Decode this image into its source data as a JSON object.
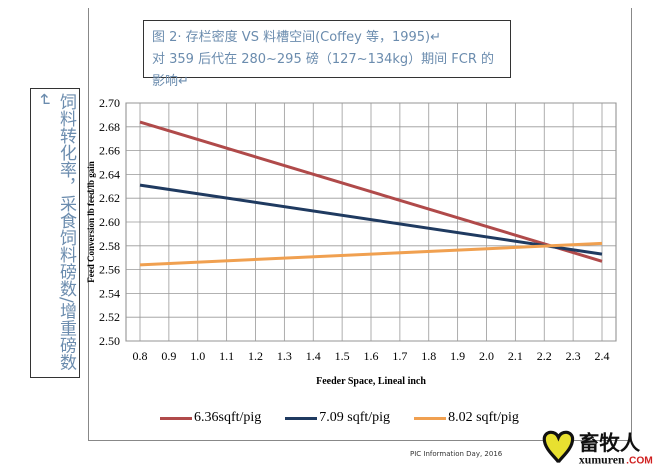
{
  "title_box": {
    "line1": "图 2· 存栏密度 VS 料槽空间(Coffey 等，1995)↵",
    "line2": "对 359 后代在 280~295 磅（127~134kg）期间 FCR 的影响↵"
  },
  "side_label": "饲料转化率，采食饲料磅数/增重磅数↵",
  "credit": "PIC Information Day, 2016",
  "logo": {
    "cn": "畜牧人",
    "en": "xumuren",
    "com": ".COM"
  },
  "chart_data": {
    "type": "line",
    "xlabel": "Feeder Space, Lineal inch",
    "ylabel": "Feed Conversion lb feed/lb gain",
    "xlim": [
      0.8,
      2.4
    ],
    "ylim": [
      2.5,
      2.7
    ],
    "x_ticks": [
      "0.8",
      "0.9",
      "1.0",
      "1.1",
      "1.2",
      "1.3",
      "1.4",
      "1.5",
      "1.6",
      "1.7",
      "1.8",
      "1.9",
      "2.0",
      "2.1",
      "2.2",
      "2.3",
      "2.4"
    ],
    "y_ticks": [
      "2.50",
      "2.52",
      "2.54",
      "2.56",
      "2.58",
      "2.60",
      "2.62",
      "2.64",
      "2.66",
      "2.68",
      "2.70"
    ],
    "grid": true,
    "legend_placement": "bottom",
    "series": [
      {
        "name": "6.36sqft/pig",
        "color": "#b04a4a",
        "x": [
          0.8,
          2.4
        ],
        "y": [
          2.684,
          2.567
        ]
      },
      {
        "name": "7.09 sqft/pig",
        "color": "#1f3a60",
        "x": [
          0.8,
          2.4
        ],
        "y": [
          2.631,
          2.573
        ]
      },
      {
        "name": "8.02 sqft/pig",
        "color": "#f0a050",
        "x": [
          0.8,
          2.4
        ],
        "y": [
          2.564,
          2.582
        ]
      }
    ]
  }
}
